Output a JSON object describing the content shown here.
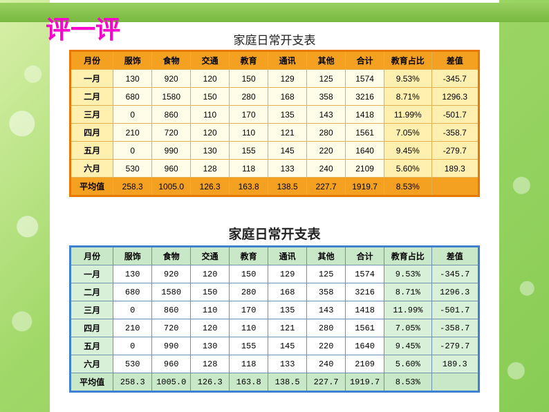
{
  "headline": "评一评",
  "table1": {
    "title": "家庭日常开支表",
    "columns": [
      "月份",
      "服饰",
      "食物",
      "交通",
      "教育",
      "通讯",
      "其他",
      "合计",
      "教育占比",
      "差值"
    ],
    "rows": [
      [
        "一月",
        "130",
        "920",
        "120",
        "150",
        "129",
        "125",
        "1574",
        "9.53%",
        "-345.7"
      ],
      [
        "二月",
        "680",
        "1580",
        "150",
        "280",
        "168",
        "358",
        "3216",
        "8.71%",
        "1296.3"
      ],
      [
        "三月",
        "0",
        "860",
        "110",
        "170",
        "135",
        "143",
        "1418",
        "11.99%",
        "-501.7"
      ],
      [
        "四月",
        "210",
        "720",
        "120",
        "110",
        "121",
        "280",
        "1561",
        "7.05%",
        "-358.7"
      ],
      [
        "五月",
        "0",
        "990",
        "130",
        "155",
        "145",
        "220",
        "1640",
        "9.45%",
        "-279.7"
      ],
      [
        "六月",
        "530",
        "960",
        "128",
        "118",
        "133",
        "240",
        "2109",
        "5.60%",
        "189.3"
      ]
    ],
    "avg": [
      "平均值",
      "258.3",
      "1005.0",
      "126.3",
      "163.8",
      "138.5",
      "227.7",
      "1919.7",
      "8.53%",
      ""
    ]
  },
  "table2": {
    "title": "家庭日常开支表",
    "columns": [
      "月份",
      "服饰",
      "食物",
      "交通",
      "教育",
      "通讯",
      "其他",
      "合计",
      "教育占比",
      "差值"
    ],
    "rows": [
      [
        "一月",
        "130",
        "920",
        "120",
        "150",
        "129",
        "125",
        "1574",
        "9.53%",
        "-345.7"
      ],
      [
        "二月",
        "680",
        "1580",
        "150",
        "280",
        "168",
        "358",
        "3216",
        "8.71%",
        "1296.3"
      ],
      [
        "三月",
        "0",
        "860",
        "110",
        "170",
        "135",
        "143",
        "1418",
        "11.99%",
        "-501.7"
      ],
      [
        "四月",
        "210",
        "720",
        "120",
        "110",
        "121",
        "280",
        "1561",
        "7.05%",
        "-358.7"
      ],
      [
        "五月",
        "0",
        "990",
        "130",
        "155",
        "145",
        "220",
        "1640",
        "9.45%",
        "-279.7"
      ],
      [
        "六月",
        "530",
        "960",
        "128",
        "118",
        "133",
        "240",
        "2109",
        "5.60%",
        "189.3"
      ]
    ],
    "avg": [
      "平均值",
      "258.3",
      "1005.0",
      "126.3",
      "163.8",
      "138.5",
      "227.7",
      "1919.7",
      "8.53%",
      ""
    ]
  },
  "styling": {
    "dims": [
      794,
      596
    ],
    "table1_border_color": "#e87800",
    "table1_header_bg": "#f4a020",
    "table1_cell_bg": "#fffde8",
    "table1_highlight_bg": "#fff0b0",
    "table2_border_color": "#4080d0",
    "table2_header_bg": "#c8e8c8",
    "table2_cell_bg": "#ffffff",
    "table2_highlight_bg": "#d8f0d8",
    "headline_color": "#ff00cc"
  }
}
